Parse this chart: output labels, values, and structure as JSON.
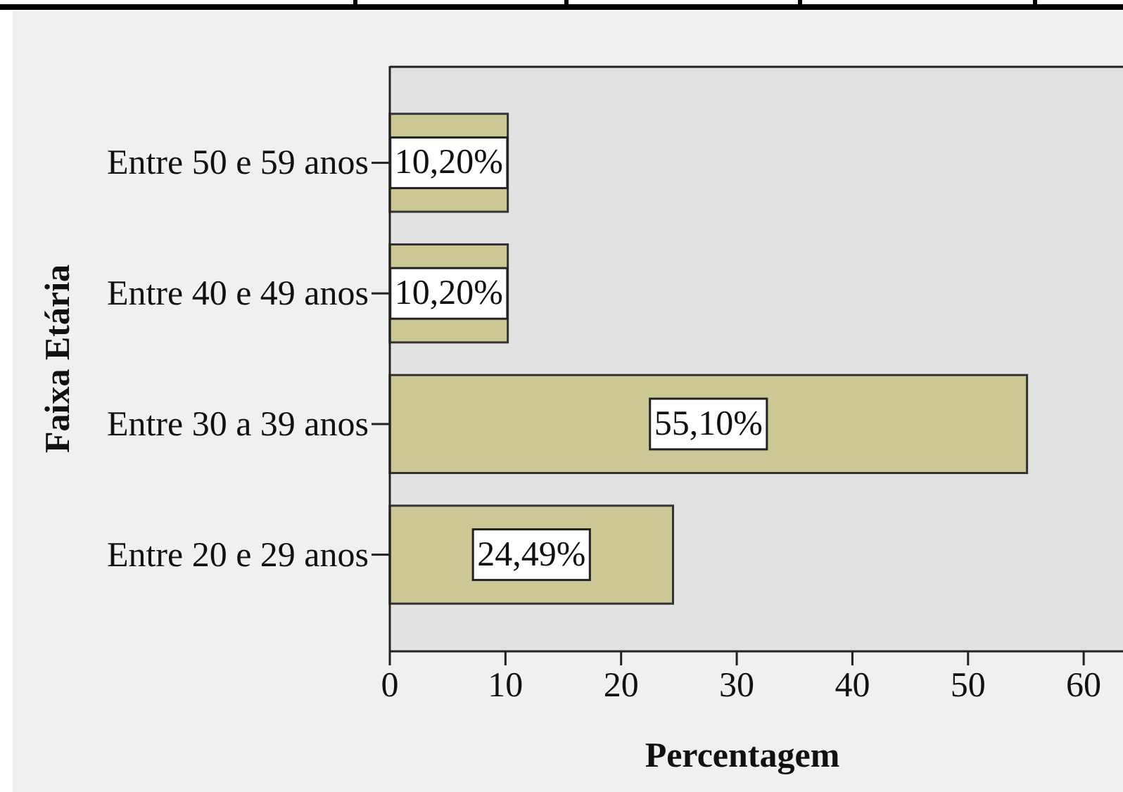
{
  "chart_data": {
    "type": "bar",
    "orientation": "horizontal",
    "categories": [
      "Entre 50 e 59 anos",
      "Entre 40 e 49 anos",
      "Entre 30 a 39 anos",
      "Entre 20 e 29 anos"
    ],
    "values": [
      10.2,
      10.2,
      55.1,
      24.49
    ],
    "value_labels": [
      "10,20%",
      "10,20%",
      "55,10%",
      "24,49%"
    ],
    "color": "#cdc796",
    "xlabel": "Percentagem",
    "ylabel": "Faixa Etária",
    "xlim": [
      0,
      63.4
    ],
    "xticks": [
      0,
      10,
      20,
      30,
      40,
      50,
      60
    ]
  }
}
